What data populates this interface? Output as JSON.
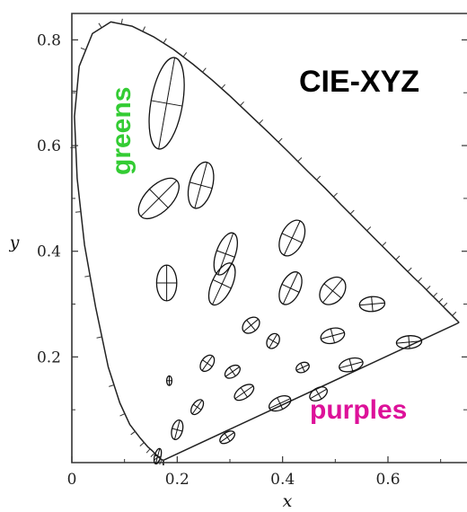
{
  "chart_data": {
    "type": "scatter",
    "title": "CIE-XYZ",
    "xlabel": "x",
    "ylabel": "y",
    "xlim": [
      0,
      0.75
    ],
    "ylim": [
      0,
      0.85
    ],
    "x_ticks": [
      "0",
      "0.2",
      "0.4",
      "0.6"
    ],
    "y_ticks": [
      "0.2",
      "0.4",
      "0.6",
      "0.8"
    ],
    "grid": false,
    "annotations": [
      {
        "text": "greens",
        "color": "#33cc33"
      },
      {
        "text": "purples",
        "color": "#dd1199"
      }
    ],
    "spectral_locus": [
      [
        0.175,
        0.005
      ],
      [
        0.174,
        0.005
      ],
      [
        0.172,
        0.005
      ],
      [
        0.17,
        0.006
      ],
      [
        0.166,
        0.009
      ],
      [
        0.161,
        0.014
      ],
      [
        0.153,
        0.022
      ],
      [
        0.144,
        0.03
      ],
      [
        0.13,
        0.046
      ],
      [
        0.11,
        0.072
      ],
      [
        0.091,
        0.113
      ],
      [
        0.069,
        0.181
      ],
      [
        0.045,
        0.295
      ],
      [
        0.024,
        0.412
      ],
      [
        0.01,
        0.538
      ],
      [
        0.005,
        0.655
      ],
      [
        0.014,
        0.75
      ],
      [
        0.039,
        0.812
      ],
      [
        0.074,
        0.834
      ],
      [
        0.114,
        0.826
      ],
      [
        0.155,
        0.806
      ],
      [
        0.193,
        0.782
      ],
      [
        0.23,
        0.754
      ],
      [
        0.266,
        0.724
      ],
      [
        0.302,
        0.692
      ],
      [
        0.337,
        0.659
      ],
      [
        0.374,
        0.624
      ],
      [
        0.41,
        0.589
      ],
      [
        0.448,
        0.551
      ],
      [
        0.481,
        0.519
      ],
      [
        0.512,
        0.487
      ],
      [
        0.545,
        0.454
      ],
      [
        0.575,
        0.424
      ],
      [
        0.603,
        0.396
      ],
      [
        0.627,
        0.372
      ],
      [
        0.648,
        0.351
      ],
      [
        0.666,
        0.334
      ],
      [
        0.68,
        0.32
      ],
      [
        0.692,
        0.308
      ],
      [
        0.701,
        0.299
      ],
      [
        0.709,
        0.291
      ],
      [
        0.735,
        0.265
      ]
    ],
    "ellipses": [
      {
        "x": 0.18,
        "y": 0.68,
        "a": 0.088,
        "b": 0.03,
        "angle": 80
      },
      {
        "x": 0.165,
        "y": 0.5,
        "a": 0.048,
        "b": 0.025,
        "angle": 45
      },
      {
        "x": 0.18,
        "y": 0.34,
        "a": 0.034,
        "b": 0.019,
        "angle": 90
      },
      {
        "x": 0.245,
        "y": 0.525,
        "a": 0.045,
        "b": 0.022,
        "angle": 75
      },
      {
        "x": 0.292,
        "y": 0.395,
        "a": 0.042,
        "b": 0.018,
        "angle": 70
      },
      {
        "x": 0.285,
        "y": 0.338,
        "a": 0.043,
        "b": 0.019,
        "angle": 65
      },
      {
        "x": 0.418,
        "y": 0.425,
        "a": 0.036,
        "b": 0.021,
        "angle": 65
      },
      {
        "x": 0.415,
        "y": 0.33,
        "a": 0.033,
        "b": 0.018,
        "angle": 65
      },
      {
        "x": 0.495,
        "y": 0.325,
        "a": 0.029,
        "b": 0.021,
        "angle": 50
      },
      {
        "x": 0.57,
        "y": 0.3,
        "a": 0.024,
        "b": 0.014,
        "angle": 5
      },
      {
        "x": 0.34,
        "y": 0.26,
        "a": 0.018,
        "b": 0.013,
        "angle": 40
      },
      {
        "x": 0.382,
        "y": 0.23,
        "a": 0.015,
        "b": 0.011,
        "angle": 60
      },
      {
        "x": 0.495,
        "y": 0.24,
        "a": 0.023,
        "b": 0.014,
        "angle": 15
      },
      {
        "x": 0.64,
        "y": 0.228,
        "a": 0.024,
        "b": 0.012,
        "angle": 5
      },
      {
        "x": 0.257,
        "y": 0.188,
        "a": 0.017,
        "b": 0.011,
        "angle": 55
      },
      {
        "x": 0.305,
        "y": 0.172,
        "a": 0.016,
        "b": 0.01,
        "angle": 35
      },
      {
        "x": 0.438,
        "y": 0.18,
        "a": 0.013,
        "b": 0.009,
        "angle": 25
      },
      {
        "x": 0.53,
        "y": 0.185,
        "a": 0.023,
        "b": 0.012,
        "angle": 15
      },
      {
        "x": 0.185,
        "y": 0.155,
        "a": 0.009,
        "b": 0.005,
        "angle": 90
      },
      {
        "x": 0.327,
        "y": 0.133,
        "a": 0.021,
        "b": 0.011,
        "angle": 35
      },
      {
        "x": 0.468,
        "y": 0.13,
        "a": 0.018,
        "b": 0.011,
        "angle": 30
      },
      {
        "x": 0.238,
        "y": 0.105,
        "a": 0.016,
        "b": 0.009,
        "angle": 55
      },
      {
        "x": 0.395,
        "y": 0.112,
        "a": 0.022,
        "b": 0.012,
        "angle": 25
      },
      {
        "x": 0.2,
        "y": 0.062,
        "a": 0.019,
        "b": 0.01,
        "angle": 75
      },
      {
        "x": 0.295,
        "y": 0.048,
        "a": 0.016,
        "b": 0.009,
        "angle": 35
      },
      {
        "x": 0.163,
        "y": 0.012,
        "a": 0.015,
        "b": 0.006,
        "angle": 75
      }
    ]
  }
}
